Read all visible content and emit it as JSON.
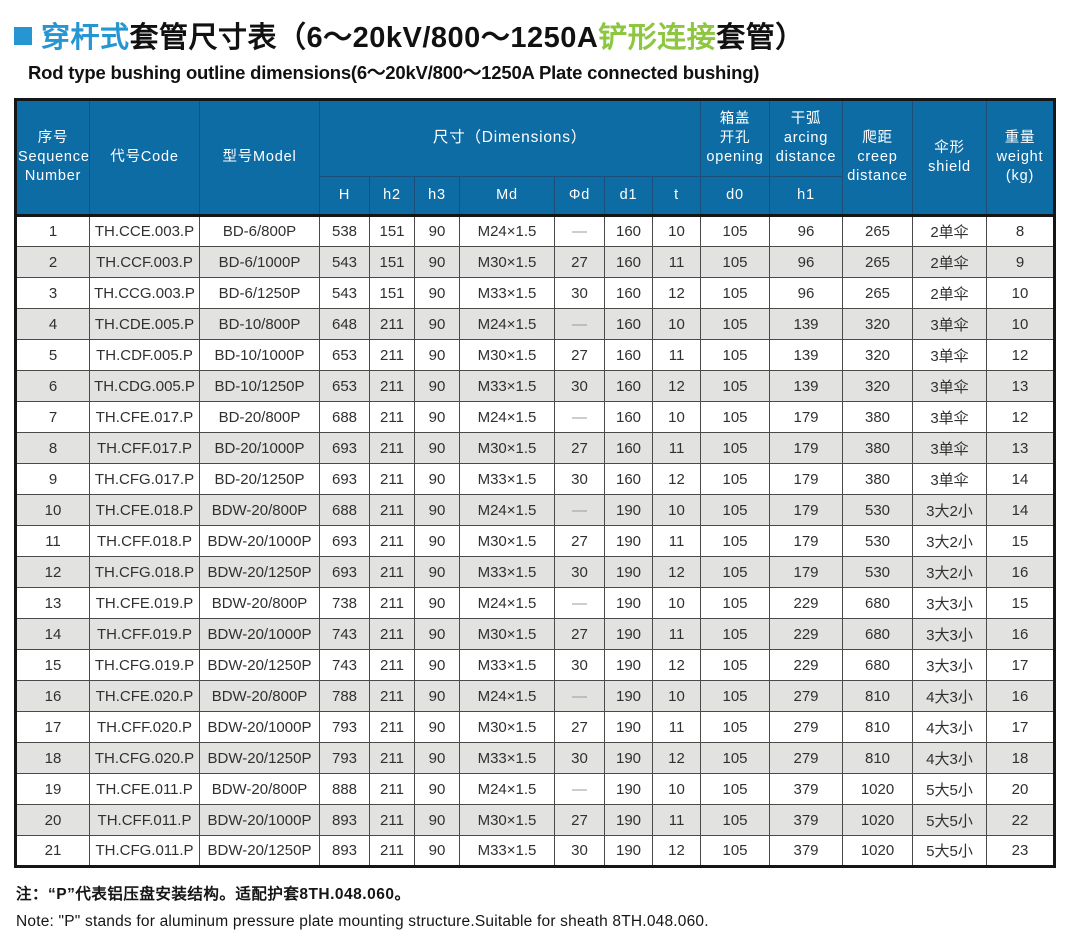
{
  "title": {
    "segments": [
      {
        "text": "穿杆式",
        "color": "#2696d3"
      },
      {
        "text": "套管尺寸表（6～20kV/800～1250A",
        "color": "#111111"
      },
      {
        "text": "铲形连接",
        "color": "#8dc63f"
      },
      {
        "text": "套管）",
        "color": "#111111"
      }
    ],
    "subtitle": "Rod type bushing outline dimensions(6～20kV/800～1250A Plate connected bushing)"
  },
  "colors": {
    "accent_blue": "#2696d3",
    "accent_green": "#8dc63f",
    "table_header_bg": "#0e6ca5",
    "stripe_row_bg": "#e2e2e0"
  },
  "table": {
    "column_keys": [
      "seq",
      "code",
      "model",
      "H",
      "h2",
      "h3",
      "Md",
      "phi-d",
      "d1",
      "t",
      "d0",
      "h1",
      "creep",
      "shield",
      "weight"
    ],
    "header": {
      "seq": "序号\nSequence\nNumber",
      "code": "代号Code",
      "model": "型号Model",
      "dimensions": "尺寸（Dimensions）",
      "opening": "箱盖\n开孔\nopening",
      "arcing": "干弧\narcing\ndistance",
      "creep": "爬距\ncreep\ndistance",
      "shield": "伞形\nshield",
      "weight": "重量\nweight\n(kg)",
      "sub": [
        "H",
        "h2",
        "h3",
        "Md",
        "Φd",
        "d1",
        "t",
        "d0",
        "h1"
      ]
    },
    "rows": [
      [
        "1",
        "TH.CCE.003.P",
        "BD-6/800P",
        "538",
        "151",
        "90",
        "M24×1.5",
        "—",
        "160",
        "10",
        "105",
        "96",
        "265",
        "2单伞",
        "8"
      ],
      [
        "2",
        "TH.CCF.003.P",
        "BD-6/1000P",
        "543",
        "151",
        "90",
        "M30×1.5",
        "27",
        "160",
        "11",
        "105",
        "96",
        "265",
        "2单伞",
        "9"
      ],
      [
        "3",
        "TH.CCG.003.P",
        "BD-6/1250P",
        "543",
        "151",
        "90",
        "M33×1.5",
        "30",
        "160",
        "12",
        "105",
        "96",
        "265",
        "2单伞",
        "10"
      ],
      [
        "4",
        "TH.CDE.005.P",
        "BD-10/800P",
        "648",
        "211",
        "90",
        "M24×1.5",
        "—",
        "160",
        "10",
        "105",
        "139",
        "320",
        "3单伞",
        "10"
      ],
      [
        "5",
        "TH.CDF.005.P",
        "BD-10/1000P",
        "653",
        "211",
        "90",
        "M30×1.5",
        "27",
        "160",
        "11",
        "105",
        "139",
        "320",
        "3单伞",
        "12"
      ],
      [
        "6",
        "TH.CDG.005.P",
        "BD-10/1250P",
        "653",
        "211",
        "90",
        "M33×1.5",
        "30",
        "160",
        "12",
        "105",
        "139",
        "320",
        "3单伞",
        "13"
      ],
      [
        "7",
        "TH.CFE.017.P",
        "BD-20/800P",
        "688",
        "211",
        "90",
        "M24×1.5",
        "—",
        "160",
        "10",
        "105",
        "179",
        "380",
        "3单伞",
        "12"
      ],
      [
        "8",
        "TH.CFF.017.P",
        "BD-20/1000P",
        "693",
        "211",
        "90",
        "M30×1.5",
        "27",
        "160",
        "11",
        "105",
        "179",
        "380",
        "3单伞",
        "13"
      ],
      [
        "9",
        "TH.CFG.017.P",
        "BD-20/1250P",
        "693",
        "211",
        "90",
        "M33×1.5",
        "30",
        "160",
        "12",
        "105",
        "179",
        "380",
        "3单伞",
        "14"
      ],
      [
        "10",
        "TH.CFE.018.P",
        "BDW-20/800P",
        "688",
        "211",
        "90",
        "M24×1.5",
        "—",
        "190",
        "10",
        "105",
        "179",
        "530",
        "3大2小",
        "14"
      ],
      [
        "11",
        "TH.CFF.018.P",
        "BDW-20/1000P",
        "693",
        "211",
        "90",
        "M30×1.5",
        "27",
        "190",
        "11",
        "105",
        "179",
        "530",
        "3大2小",
        "15"
      ],
      [
        "12",
        "TH.CFG.018.P",
        "BDW-20/1250P",
        "693",
        "211",
        "90",
        "M33×1.5",
        "30",
        "190",
        "12",
        "105",
        "179",
        "530",
        "3大2小",
        "16"
      ],
      [
        "13",
        "TH.CFE.019.P",
        "BDW-20/800P",
        "738",
        "211",
        "90",
        "M24×1.5",
        "—",
        "190",
        "10",
        "105",
        "229",
        "680",
        "3大3小",
        "15"
      ],
      [
        "14",
        "TH.CFF.019.P",
        "BDW-20/1000P",
        "743",
        "211",
        "90",
        "M30×1.5",
        "27",
        "190",
        "11",
        "105",
        "229",
        "680",
        "3大3小",
        "16"
      ],
      [
        "15",
        "TH.CFG.019.P",
        "BDW-20/1250P",
        "743",
        "211",
        "90",
        "M33×1.5",
        "30",
        "190",
        "12",
        "105",
        "229",
        "680",
        "3大3小",
        "17"
      ],
      [
        "16",
        "TH.CFE.020.P",
        "BDW-20/800P",
        "788",
        "211",
        "90",
        "M24×1.5",
        "—",
        "190",
        "10",
        "105",
        "279",
        "810",
        "4大3小",
        "16"
      ],
      [
        "17",
        "TH.CFF.020.P",
        "BDW-20/1000P",
        "793",
        "211",
        "90",
        "M30×1.5",
        "27",
        "190",
        "11",
        "105",
        "279",
        "810",
        "4大3小",
        "17"
      ],
      [
        "18",
        "TH.CFG.020.P",
        "BDW-20/1250P",
        "793",
        "211",
        "90",
        "M33×1.5",
        "30",
        "190",
        "12",
        "105",
        "279",
        "810",
        "4大3小",
        "18"
      ],
      [
        "19",
        "TH.CFE.011.P",
        "BDW-20/800P",
        "888",
        "211",
        "90",
        "M24×1.5",
        "—",
        "190",
        "10",
        "105",
        "379",
        "1020",
        "5大5小",
        "20"
      ],
      [
        "20",
        "TH.CFF.011.P",
        "BDW-20/1000P",
        "893",
        "211",
        "90",
        "M30×1.5",
        "27",
        "190",
        "11",
        "105",
        "379",
        "1020",
        "5大5小",
        "22"
      ],
      [
        "21",
        "TH.CFG.011.P",
        "BDW-20/1250P",
        "893",
        "211",
        "90",
        "M33×1.5",
        "30",
        "190",
        "12",
        "105",
        "379",
        "1020",
        "5大5小",
        "23"
      ]
    ]
  },
  "notes": {
    "zh": "注：“P”代表铝压盘安装结构。适配护套8TH.048.060。",
    "en": "Note: \"P\" stands for aluminum pressure plate mounting structure.Suitable for sheath 8TH.048.060."
  }
}
